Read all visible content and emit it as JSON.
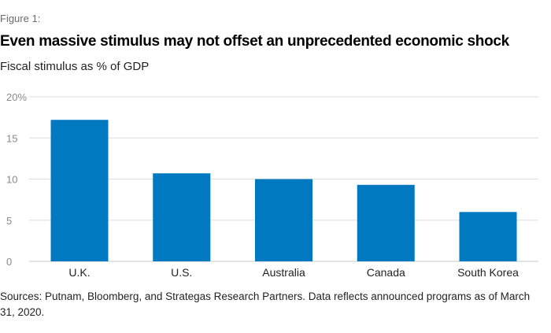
{
  "figure_label": "Figure 1:",
  "title": "Even massive stimulus may not offset an unprecedented economic shock",
  "subtitle": "Fiscal stimulus as % of GDP",
  "source": "Sources: Putnam, Bloomberg, and Strategas Research Partners. Data reflects announced programs as of March 31, 2020.",
  "colors": {
    "bar": "#0079c1",
    "grid": "#dedede",
    "axis": "#c8c8c8"
  },
  "chart_data": {
    "type": "bar",
    "title": "Even massive stimulus may not offset an unprecedented economic shock",
    "subtitle": "Fiscal stimulus as % of GDP",
    "xlabel": "",
    "ylabel": "",
    "categories": [
      "U.K.",
      "U.S.",
      "Australia",
      "Canada",
      "South Korea"
    ],
    "values": [
      17.2,
      10.7,
      10.0,
      9.3,
      6.0
    ],
    "ylim": [
      0,
      20
    ],
    "yticks": [
      0,
      5,
      10,
      15,
      20
    ],
    "ytick_labels": [
      "0",
      "5",
      "10",
      "15",
      "20%"
    ],
    "grid": true,
    "legend": "none"
  }
}
